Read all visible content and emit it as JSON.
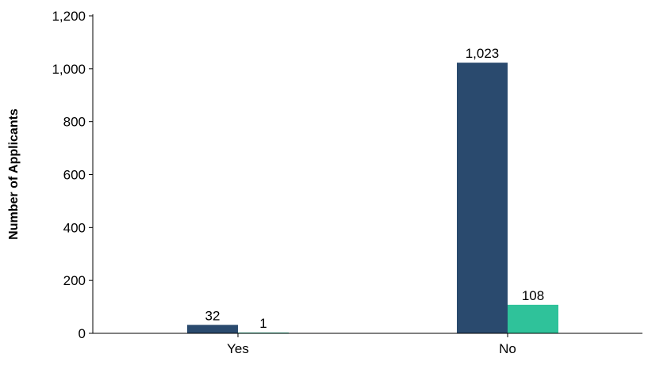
{
  "chart_data": {
    "type": "bar",
    "title": "",
    "xlabel": "",
    "ylabel": "Number of Applicants",
    "ylim": [
      0,
      1200
    ],
    "yticks": [
      0,
      200,
      400,
      600,
      800,
      1000,
      1200
    ],
    "ytick_labels": [
      "0",
      "200",
      "400",
      "600",
      "800",
      "1,000",
      "1,200"
    ],
    "categories": [
      "Yes",
      "No"
    ],
    "series": [
      {
        "values": [
          32,
          1023
        ],
        "value_labels": [
          "32",
          "1,023"
        ],
        "color": "#2a4a6e"
      },
      {
        "values": [
          1,
          108
        ],
        "value_labels": [
          "1",
          "108"
        ],
        "color": "#2fc29a"
      }
    ],
    "grid": false,
    "legend": "none"
  }
}
